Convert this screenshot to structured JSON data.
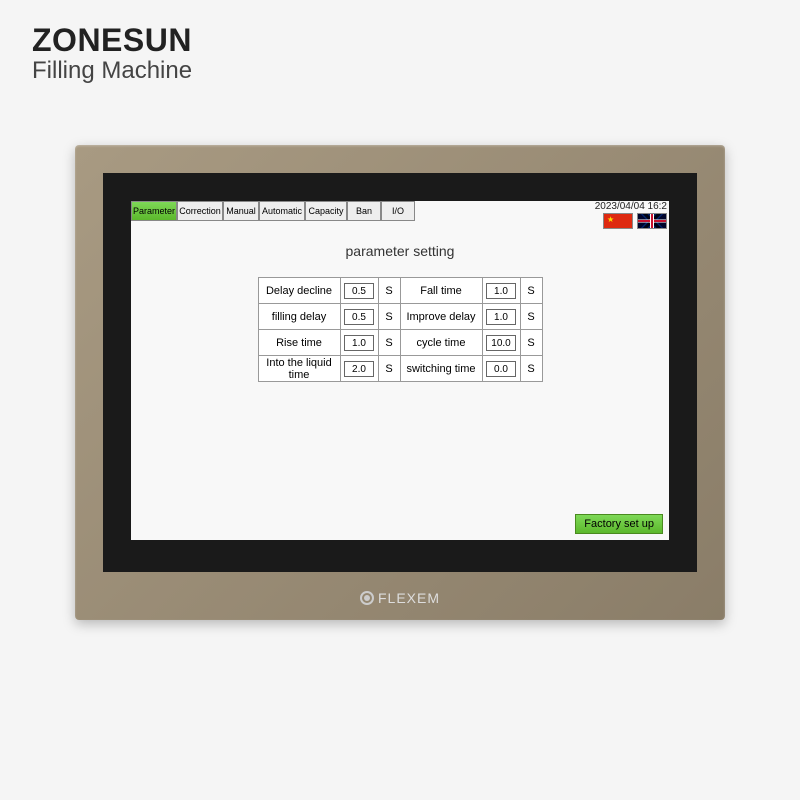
{
  "header": {
    "brand": "ZONESUN",
    "subtitle": "Filling Machine"
  },
  "device_brand": "FLEXEM",
  "watermark_text": "ZONESUN",
  "topbar": {
    "tabs": [
      {
        "label": "Parameter",
        "active": true
      },
      {
        "label": "Correction",
        "active": false
      },
      {
        "label": "Manual",
        "active": false
      },
      {
        "label": "Automatic",
        "active": false
      },
      {
        "label": "Capacity",
        "active": false
      },
      {
        "label": "Ban",
        "active": false
      },
      {
        "label": "I/O",
        "active": false
      }
    ],
    "datetime": "2023/04/04 16:2"
  },
  "page_title": "parameter setting",
  "params": {
    "rows": [
      {
        "left_label": "Delay decline",
        "left_value": "0.5",
        "left_unit": "S",
        "right_label": "Fall time",
        "right_value": "1.0",
        "right_unit": "S"
      },
      {
        "left_label": "filling delay",
        "left_value": "0.5",
        "left_unit": "S",
        "right_label": "Improve delay",
        "right_value": "1.0",
        "right_unit": "S"
      },
      {
        "left_label": "Rise time",
        "left_value": "1.0",
        "left_unit": "S",
        "right_label": "cycle time",
        "right_value": "10.0",
        "right_unit": "S"
      },
      {
        "left_label": "Into the liquid time",
        "left_value": "2.0",
        "left_unit": "S",
        "right_label": "switching time",
        "right_value": "0.0",
        "right_unit": "S"
      }
    ]
  },
  "factory_button": "Factory set up",
  "colors": {
    "tab_active_bg": "#5cb82c",
    "device_frame": "#a89a82",
    "bezel": "#1a1a1a",
    "screen_bg": "#f8f8f8"
  }
}
